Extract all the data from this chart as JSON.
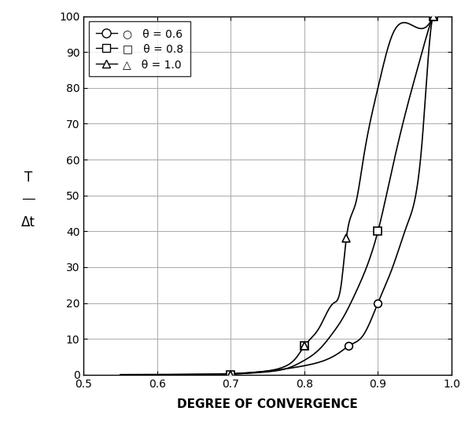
{
  "title": "",
  "xlabel": "DEGREE OF CONVERGENCE",
  "ylabel": "T\nΔt",
  "xlim": [
    0.5,
    1.0
  ],
  "ylim": [
    0,
    100
  ],
  "xticks": [
    0.5,
    0.6,
    0.7,
    0.8,
    0.9,
    1.0
  ],
  "yticks": [
    0,
    10,
    20,
    30,
    40,
    50,
    60,
    70,
    80,
    90,
    100
  ],
  "curves": [
    {
      "theta": 0.6,
      "label": "θ = 0.6",
      "marker": "o",
      "marker_points_x": [
        0.7,
        0.86,
        0.9,
        0.975
      ],
      "marker_points_y": [
        0,
        8,
        20,
        100
      ]
    },
    {
      "theta": 0.8,
      "label": "θ = 0.8",
      "marker": "s",
      "marker_points_x": [
        0.7,
        0.8,
        0.9,
        0.975
      ],
      "marker_points_y": [
        0,
        8,
        40,
        100
      ]
    },
    {
      "theta": 1.0,
      "label": "θ = 1.0",
      "marker": "^",
      "marker_points_x": [
        0.7,
        0.8,
        0.857,
        0.975
      ],
      "marker_points_y": [
        0,
        8,
        38,
        100
      ]
    }
  ],
  "line_color": "#000000",
  "background_color": "#ffffff",
  "grid_color": "#aaaaaa"
}
